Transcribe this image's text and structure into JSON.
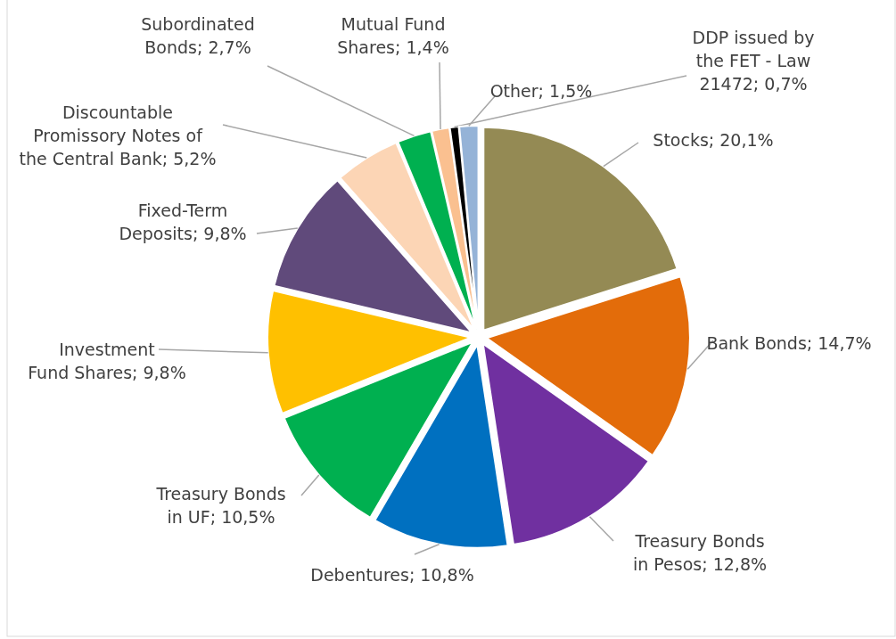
{
  "chart_data": {
    "type": "pie",
    "categories": [
      "Stocks",
      "Bank Bonds",
      "Treasury Bonds in Pesos",
      "Debentures",
      "Treasury Bonds in UF",
      "Investment Fund Shares",
      "Fixed-Term Deposits",
      "Discountable Promissory Notes of the Central Bank",
      "Subordinated Bonds",
      "Mutual Fund Shares",
      "DDP issued by the FET - Law 21472",
      "Other"
    ],
    "values": [
      20.1,
      14.7,
      12.8,
      10.8,
      10.5,
      9.8,
      9.8,
      5.2,
      2.7,
      1.4,
      0.7,
      1.5
    ],
    "value_labels": [
      "20,1%",
      "14,7%",
      "12,8%",
      "10,8%",
      "10,5%",
      "9,8%",
      "9,8%",
      "5,2%",
      "2,7%",
      "1,4%",
      "0,7%",
      "1,5%"
    ],
    "colors": [
      "#948a54",
      "#e36c0a",
      "#7030a0",
      "#0070c0",
      "#00b050",
      "#ffc000",
      "#604a7b",
      "#fcd5b5",
      "#00b050",
      "#fac090",
      "#000000",
      "#95b3d7"
    ],
    "legend": false
  }
}
